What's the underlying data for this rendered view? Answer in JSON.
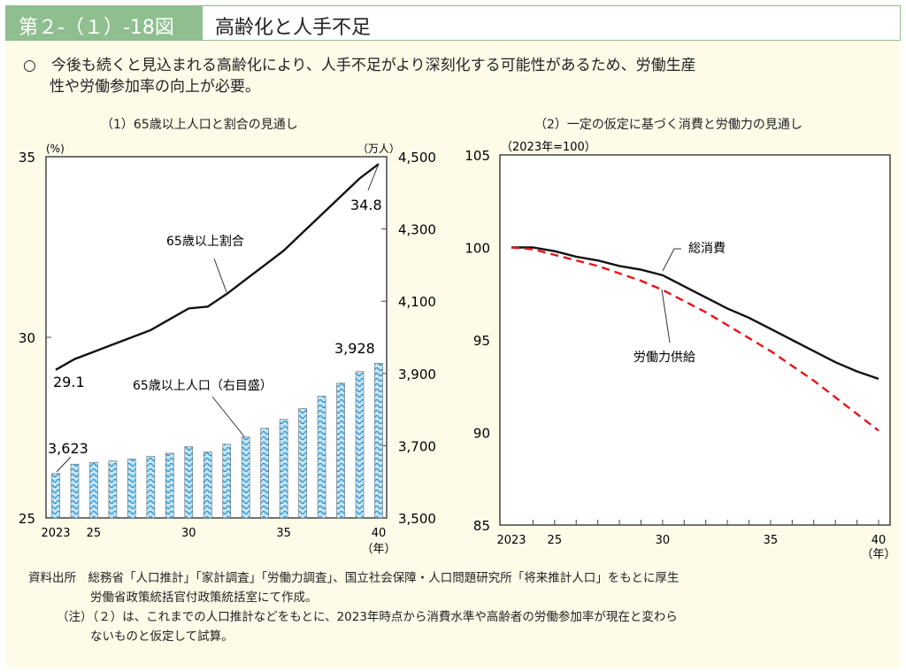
{
  "header": {
    "figure_no": "第２-（１）-18図",
    "title": "高齢化と人手不足"
  },
  "lead": {
    "bullet": "○",
    "line1": "今後も続くと見込まれる高齢化により、人手不足がより深刻化する可能性があるため、労働生産",
    "line2": "性や労働参加率の向上が必要。"
  },
  "notes": {
    "source_label": "資料出所",
    "source_line1": "総務省「人口推計」「家計調査」「労働力調査」、国立社会保障・人口問題研究所「将来推計人口」をもとに厚生",
    "source_line2": "労働省政策統括官付政策統括室にて作成。",
    "note_line1": "（注）（２）は、これまでの人口推計などをもとに、2023年時点から消費水準や高齢者の労働参加率が現在と変わら",
    "note_line2": "ないものと仮定して試算。"
  },
  "chart_data": [
    {
      "type": "bar+line",
      "title": "（1）65歳以上人口と割合の見通し",
      "x": [
        2023,
        2024,
        2025,
        2026,
        2027,
        2028,
        2029,
        2030,
        2031,
        2032,
        2033,
        2034,
        2035,
        2036,
        2037,
        2038,
        2039,
        2040
      ],
      "xtick_labels": [
        "2023",
        "25",
        "30",
        "35",
        "40"
      ],
      "xtick_values": [
        2023,
        2025,
        2030,
        2035,
        2040
      ],
      "xlabel": "（年）",
      "y_left": {
        "unit": "(%)",
        "range": [
          25,
          35
        ],
        "ticks": [
          "25",
          "30",
          "35"
        ]
      },
      "y_right": {
        "unit": "（万人）",
        "range": [
          3500,
          4500
        ],
        "ticks": [
          "3,500",
          "3,700",
          "3,900",
          "4,100",
          "4,300",
          "4,500"
        ]
      },
      "series": [
        {
          "name": "65歳以上人口（右目盛）",
          "axis": "right",
          "kind": "bar",
          "color": "#5ab4e0",
          "values": [
            3623,
            3649,
            3654,
            3658,
            3663,
            3671,
            3679,
            3697,
            3683,
            3704,
            3724,
            3748,
            3773,
            3803,
            3837,
            3873,
            3905,
            3928
          ]
        },
        {
          "name": "65歳以上割合",
          "axis": "left",
          "kind": "line",
          "color": "#111111",
          "values": [
            29.1,
            29.4,
            29.6,
            29.8,
            30.0,
            30.2,
            30.5,
            30.8,
            30.85,
            31.2,
            31.6,
            32.0,
            32.4,
            32.9,
            33.4,
            33.9,
            34.4,
            34.8
          ]
        }
      ],
      "annotations": [
        "3,623",
        "3,928",
        "29.1",
        "34.8"
      ]
    },
    {
      "type": "line",
      "title": "（2）一定の仮定に基づく消費と労働力の見通し",
      "x": [
        2023,
        2024,
        2025,
        2026,
        2027,
        2028,
        2029,
        2030,
        2031,
        2032,
        2033,
        2034,
        2035,
        2036,
        2037,
        2038,
        2039,
        2040
      ],
      "xtick_labels": [
        "2023",
        "25",
        "30",
        "35",
        "40"
      ],
      "xtick_values": [
        2023,
        2025,
        2030,
        2035,
        2040
      ],
      "xlabel": "（年）",
      "ylabel": "（2023年=100）",
      "ylim": [
        85,
        105
      ],
      "yticks": [
        "85",
        "90",
        "95",
        "100",
        "105"
      ],
      "series": [
        {
          "name": "総消費",
          "color": "#111111",
          "dash": false,
          "values": [
            100,
            100,
            99.8,
            99.5,
            99.3,
            99.0,
            98.8,
            98.5,
            97.9,
            97.3,
            96.7,
            96.2,
            95.6,
            95.0,
            94.4,
            93.8,
            93.3,
            92.9
          ]
        },
        {
          "name": "労働力供給",
          "color": "#e8141c",
          "dash": true,
          "values": [
            100,
            99.9,
            99.6,
            99.3,
            99.0,
            98.6,
            98.2,
            97.7,
            97.1,
            96.5,
            95.8,
            95.1,
            94.4,
            93.6,
            92.8,
            91.9,
            91.0,
            90.1
          ]
        }
      ]
    }
  ]
}
